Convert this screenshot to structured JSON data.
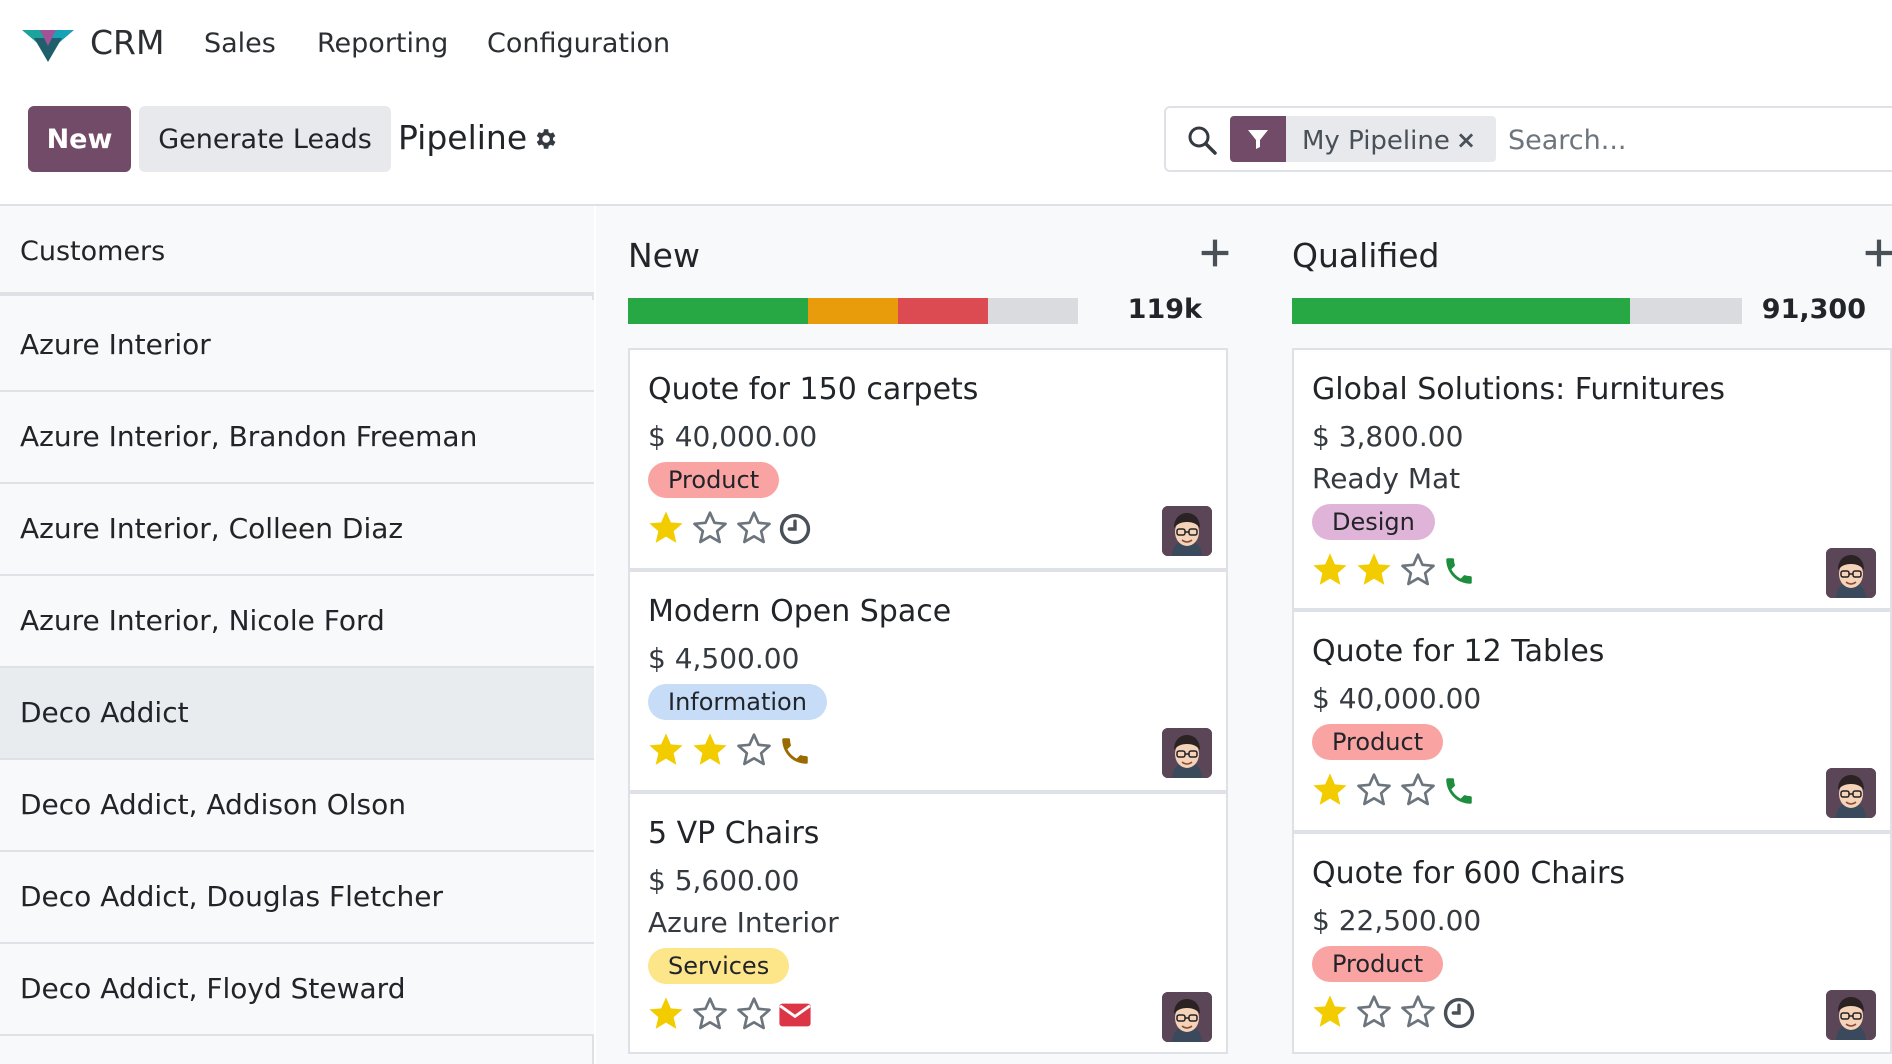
{
  "app": {
    "name": "CRM"
  },
  "menu": [
    "Sales",
    "Reporting",
    "Configuration"
  ],
  "controls": {
    "new_label": "New",
    "generate_label": "Generate Leads",
    "title": "Pipeline"
  },
  "search": {
    "facet": "My Pipeline",
    "facet_close": "×",
    "placeholder": "Search..."
  },
  "sidebar": {
    "header": "Customers",
    "items": [
      "Azure Interior",
      "Azure Interior, Brandon Freeman",
      "Azure Interior, Colleen Diaz",
      "Azure Interior, Nicole Ford",
      "Deco Addict",
      "Deco Addict, Addison Olson",
      "Deco Addict, Douglas Fletcher",
      "Deco Addict, Floyd Steward"
    ],
    "active_index": 4
  },
  "colors": {
    "primary": "#714b67",
    "green": "#28a745",
    "orange": "#e89c0c",
    "red": "#dc4a52",
    "star": "#f3cc00",
    "tag_product": "#f9a3a3",
    "tag_information": "#c6dcf7",
    "tag_services": "#fde58a",
    "tag_design": "#e0b4d8"
  },
  "columns": [
    {
      "title": "New",
      "total": "119k",
      "progress": {
        "green": 0.4,
        "orange": 0.2,
        "red": 0.2
      },
      "cards": [
        {
          "title": "Quote for 150 carpets",
          "amount": "$ 40,000.00",
          "partner": "",
          "tag": "Product",
          "tag_color": "tag_product",
          "stars": 1,
          "activity": "clock-icon"
        },
        {
          "title": "Modern Open Space",
          "amount": "$ 4,500.00",
          "partner": "",
          "tag": "Information",
          "tag_color": "tag_information",
          "stars": 2,
          "activity": "phone-icon"
        },
        {
          "title": "5 VP Chairs",
          "amount": "$ 5,600.00",
          "partner": "Azure Interior",
          "tag": "Services",
          "tag_color": "tag_services",
          "stars": 1,
          "activity": "envelope-icon"
        }
      ]
    },
    {
      "title": "Qualified",
      "total": "91,300",
      "progress": {
        "green": 0.75,
        "orange": 0,
        "red": 0
      },
      "cards": [
        {
          "title": "Global Solutions: Furnitures",
          "amount": "$ 3,800.00",
          "partner": "Ready Mat",
          "tag": "Design",
          "tag_color": "tag_design",
          "stars": 2,
          "activity": "phone-icon"
        },
        {
          "title": "Quote for 12 Tables",
          "amount": "$ 40,000.00",
          "partner": "",
          "tag": "Product",
          "tag_color": "tag_product",
          "stars": 1,
          "activity": "phone-icon"
        },
        {
          "title": "Quote for 600 Chairs",
          "amount": "$ 22,500.00",
          "partner": "",
          "tag": "Product",
          "tag_color": "tag_product",
          "stars": 1,
          "activity": "clock-icon"
        }
      ]
    }
  ]
}
